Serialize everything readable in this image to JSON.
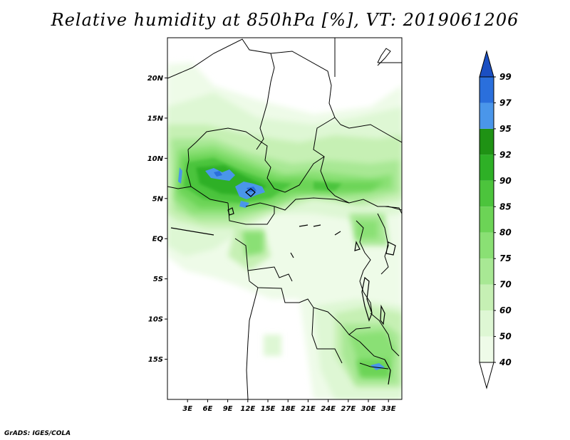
{
  "title": "Relative humidity at 850hPa [%], VT: 2019061206",
  "credit": "GrADS: IGES/COLA",
  "map": {
    "lat_labels": [
      "20N",
      "15N",
      "10N",
      "5N",
      "EQ",
      "5S",
      "10S",
      "15S"
    ],
    "lat_values": [
      20,
      15,
      10,
      5,
      0,
      -5,
      -10,
      -15
    ],
    "lon_labels": [
      "3E",
      "6E",
      "9E",
      "12E",
      "15E",
      "18E",
      "21E",
      "24E",
      "27E",
      "30E",
      "33E"
    ],
    "lon_values": [
      3,
      6,
      9,
      12,
      15,
      18,
      21,
      24,
      27,
      30,
      33
    ],
    "lon_range": [
      0,
      35
    ],
    "lat_range": [
      -20,
      25
    ]
  },
  "colorbar": {
    "levels": [
      "40",
      "50",
      "60",
      "70",
      "75",
      "80",
      "85",
      "90",
      "92",
      "95",
      "97",
      "99"
    ],
    "colors": {
      "lt40": "#ffffff",
      "40_50": "#eefbe8",
      "50_60": "#def7d4",
      "60_70": "#c6f0b4",
      "70_75": "#a8e894",
      "75_80": "#8ae074",
      "80_85": "#6cd456",
      "85_90": "#4cc43c",
      "90_92": "#2eb026",
      "92_95": "#1f9214",
      "95_97": "#4a96ea",
      "97_99": "#2a6fdc",
      "gt99": "#1b4fc2"
    }
  }
}
